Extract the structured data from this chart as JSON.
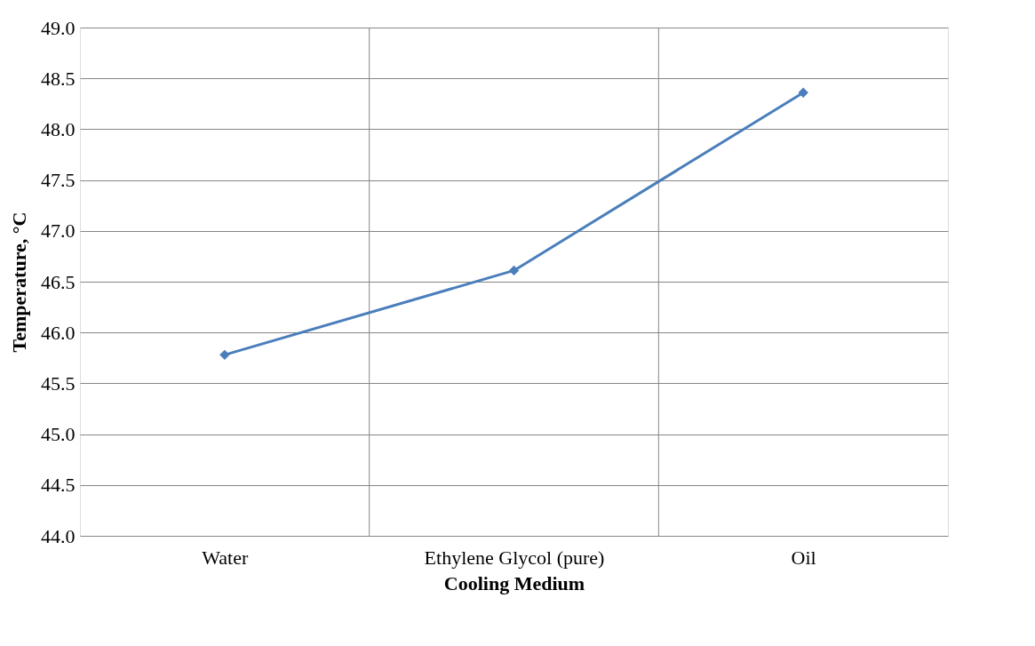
{
  "chart_data": {
    "type": "line",
    "xlabel": "Cooling Medium",
    "ylabel": "Temperature, °C",
    "categories": [
      "Water",
      "Ethylene Glycol (pure)",
      "Oil"
    ],
    "series": [
      {
        "color": "#4a7ebb",
        "values": [
          45.78,
          46.61,
          48.36
        ]
      }
    ],
    "ylim": [
      44,
      49
    ],
    "yticks": [
      {
        "value": 44,
        "label": "44.0"
      },
      {
        "value": 44.5,
        "label": "44.5"
      },
      {
        "value": 45,
        "label": "45.0"
      },
      {
        "value": 45.5,
        "label": "45.5"
      },
      {
        "value": 46,
        "label": "46.0"
      },
      {
        "value": 46.5,
        "label": "46.5"
      },
      {
        "value": 47,
        "label": "47.0"
      },
      {
        "value": 47.5,
        "label": "47.5"
      },
      {
        "value": 48,
        "label": "48.0"
      },
      {
        "value": 48.5,
        "label": "48.5"
      },
      {
        "value": 49,
        "label": "49.0"
      }
    ],
    "grid": true,
    "marker": "diamond",
    "line_style": "solid",
    "legend": false
  }
}
